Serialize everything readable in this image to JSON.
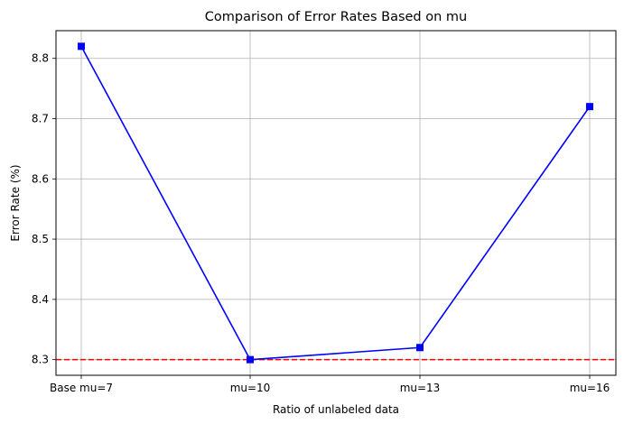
{
  "chart_data": {
    "type": "line",
    "title": "Comparison of Error Rates Based on mu",
    "xlabel": "Ratio of unlabeled data",
    "ylabel": "Error Rate (%)",
    "categories": [
      "Base mu=7",
      "mu=10",
      "mu=13",
      "mu=16"
    ],
    "series": [
      {
        "values": [
          8.82,
          8.3,
          8.32,
          8.72
        ],
        "color": "#0000ff",
        "marker": "square"
      }
    ],
    "reference_line": {
      "value": 8.3,
      "color": "#ff0000",
      "style": "dashed"
    },
    "yticks": [
      "8.3",
      "8.4",
      "8.5",
      "8.6",
      "8.7",
      "8.8"
    ],
    "ylim": [
      8.274,
      8.846
    ],
    "grid": true
  }
}
